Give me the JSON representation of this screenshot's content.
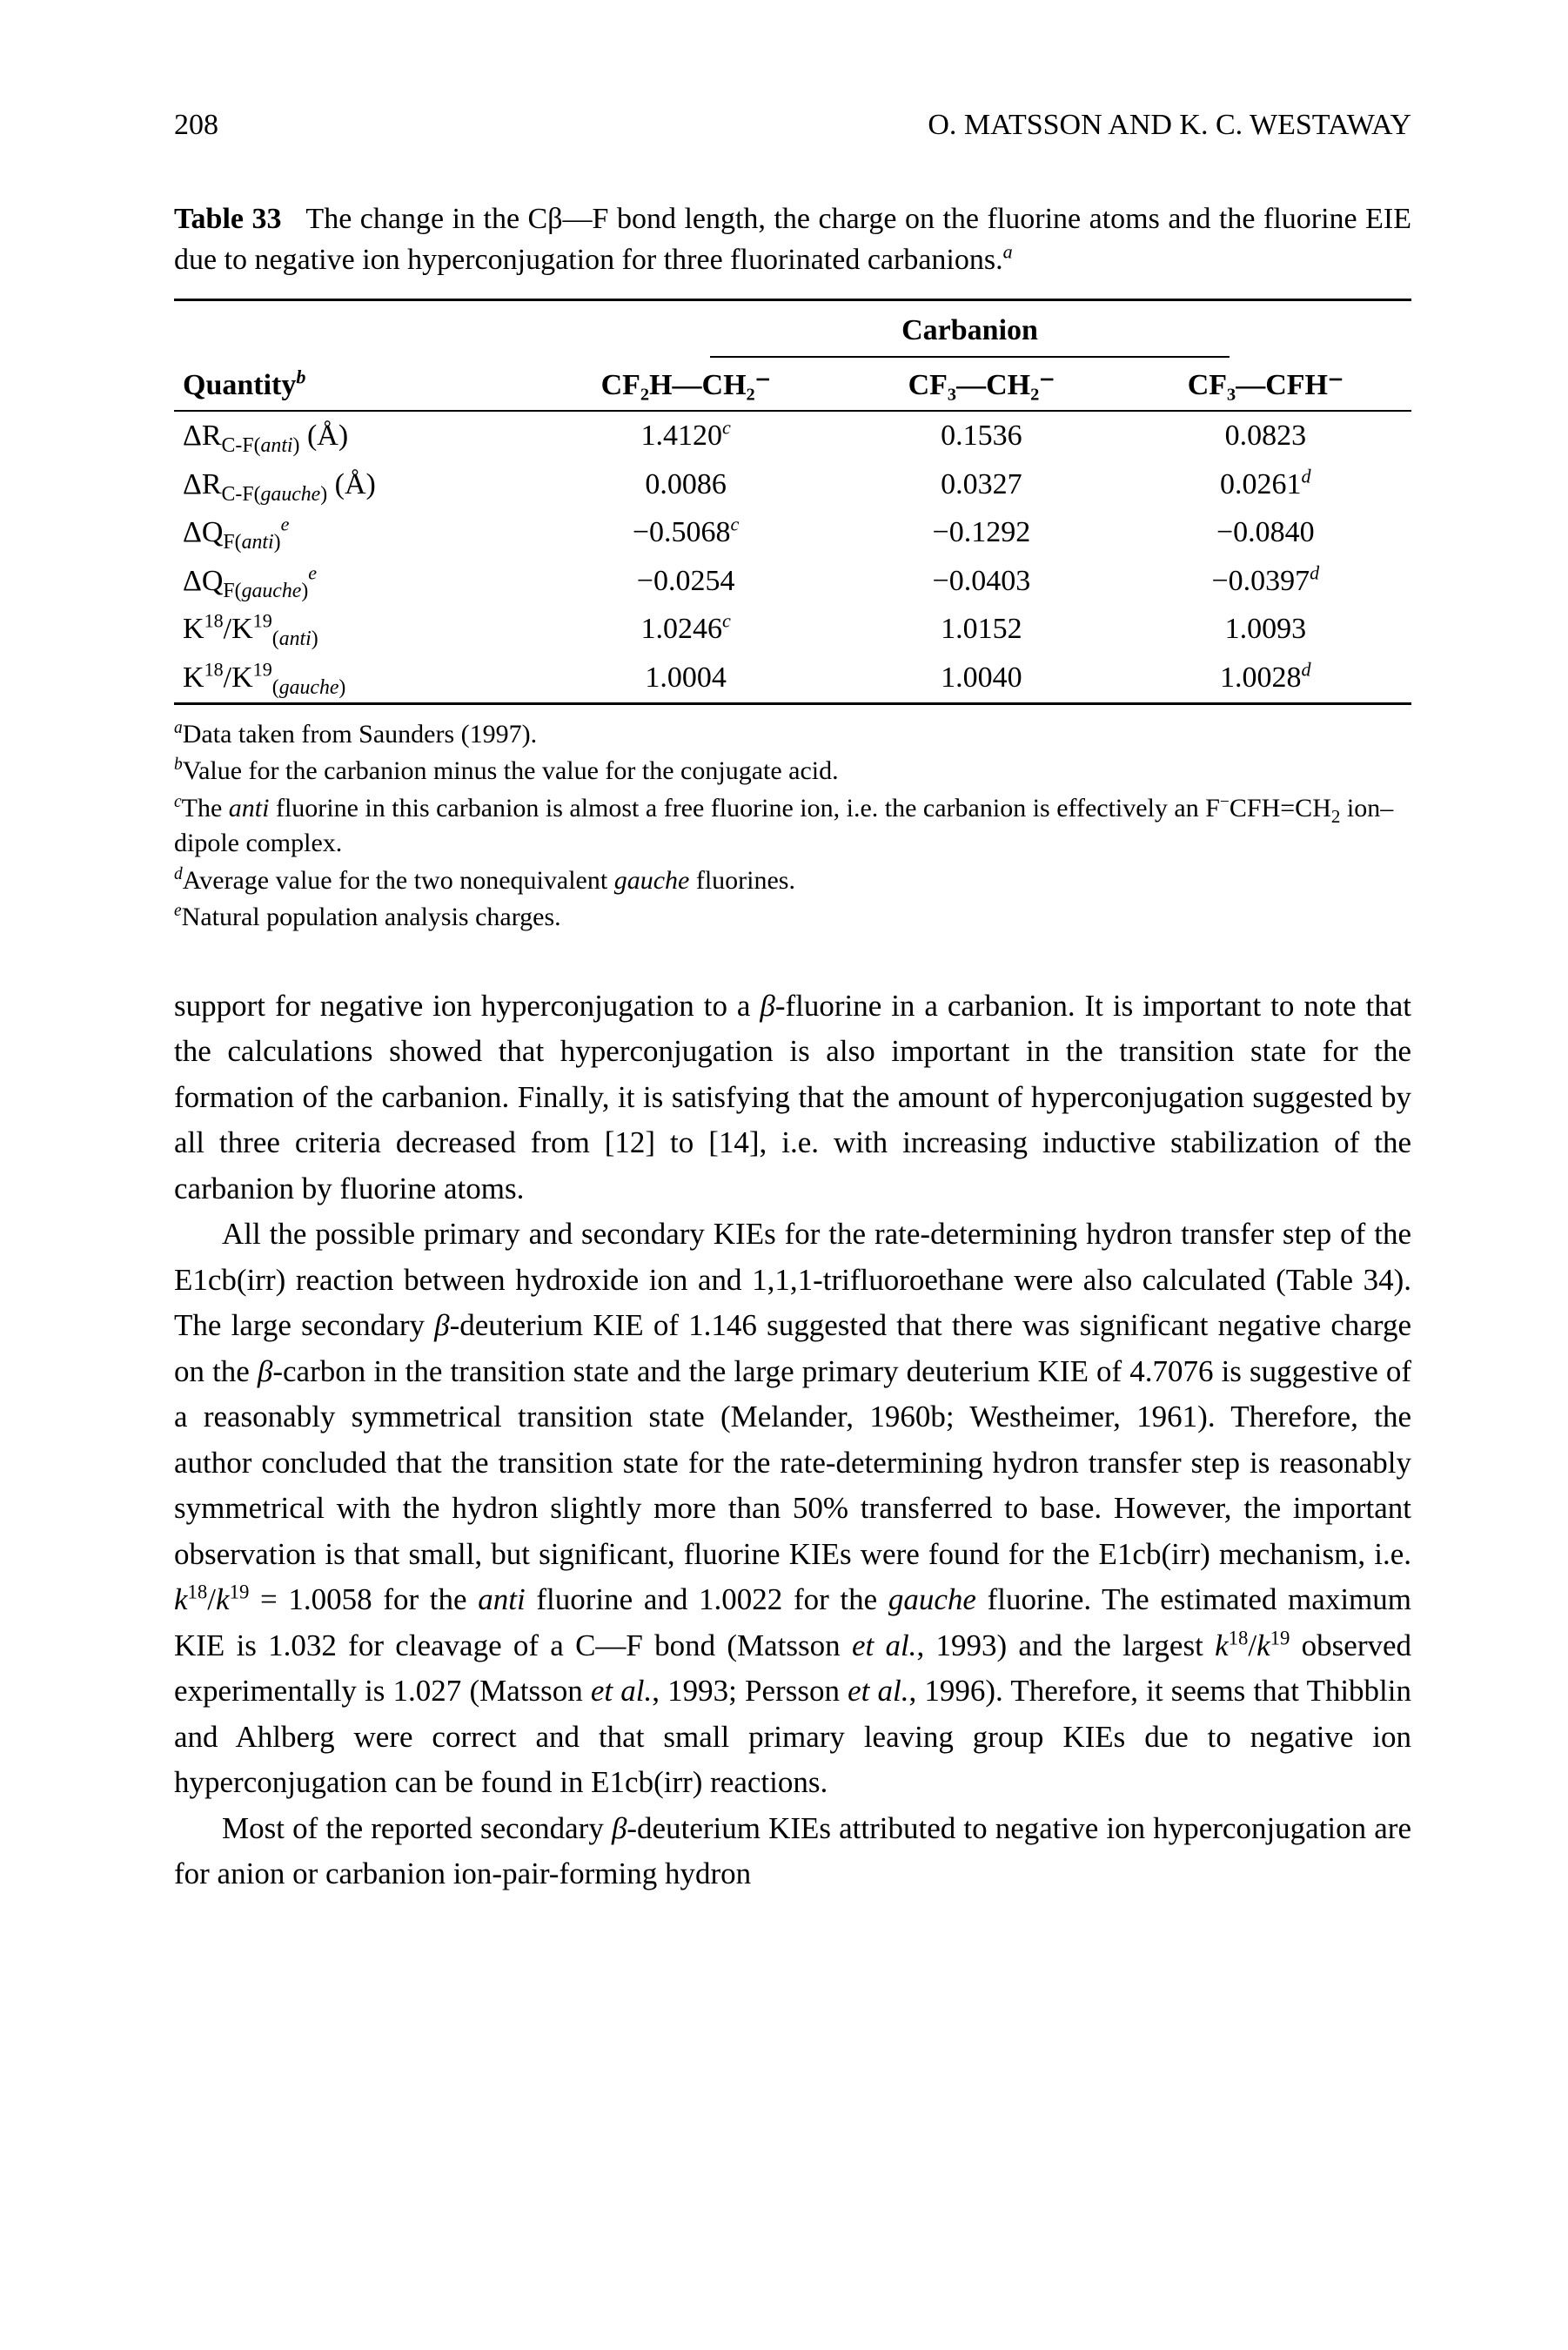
{
  "page": {
    "number": "208",
    "running_head_right": "O. MATSSON AND K. C. WESTAWAY"
  },
  "table33": {
    "label_bold": "Table 33",
    "caption_rest": "The change in the Cβ—F bond length, the charge on the fluorine atoms and the fluorine EIE due to negative ion hyperconjugation for three fluorinated carbanions.",
    "caption_super": "a",
    "spanner": "Carbanion",
    "col_headers": {
      "quantity": "Quantity",
      "quantity_super": "b",
      "c1": "CF₂H—CH₂⁻",
      "c2": "CF₃—CH₂⁻",
      "c3": "CF₃—CFH⁻"
    },
    "rows": [
      {
        "q_html": "ΔR<sub>C-F(<i>anti</i>)</sub> (Å)",
        "c1": "1.4120",
        "c1s": "c",
        "c2": "0.1536",
        "c2s": "",
        "c3": "0.0823",
        "c3s": ""
      },
      {
        "q_html": "ΔR<sub>C-F(<i>gauche</i>)</sub> (Å)",
        "c1": "0.0086",
        "c1s": "",
        "c2": "0.0327",
        "c2s": "",
        "c3": "0.0261",
        "c3s": "d"
      },
      {
        "q_html": "ΔQ<sub>F(<i>anti</i>)</sub><sup><i>e</i></sup>",
        "c1": "−0.5068",
        "c1s": "c",
        "c2": "−0.1292",
        "c2s": "",
        "c3": "−0.0840",
        "c3s": ""
      },
      {
        "q_html": "ΔQ<sub>F(<i>gauche</i>)</sub><sup><i>e</i></sup>",
        "c1": "−0.0254",
        "c1s": "",
        "c2": "−0.0403",
        "c2s": "",
        "c3": "−0.0397",
        "c3s": "d"
      },
      {
        "q_html": "K<sup>18</sup>/K<sup>19</sup><sub>(<i>anti</i>)</sub>",
        "c1": "1.0246",
        "c1s": "c",
        "c2": "1.0152",
        "c2s": "",
        "c3": "1.0093",
        "c3s": ""
      },
      {
        "q_html": "K<sup>18</sup>/K<sup>19</sup><sub>(<i>gauche</i>)</sub>",
        "c1": "1.0004",
        "c1s": "",
        "c2": "1.0040",
        "c2s": "",
        "c3": "1.0028",
        "c3s": "d"
      }
    ],
    "footnotes": {
      "a": "Data taken from Saunders (1997).",
      "b": "Value for the carbanion minus the value for the conjugate acid.",
      "c_html": "The <i>anti</i> fluorine in this carbanion is almost a free fluorine ion, i.e. the carbanion is effectively an F<sup>−</sup>CFH=CH<sub>2</sub> ion–dipole complex.",
      "d_html": "Average value for the two nonequivalent <i>gauche</i> fluorines.",
      "e": "Natural population analysis charges."
    }
  },
  "body": {
    "p1_html": "support for negative ion hyperconjugation to a <i>β</i>-fluorine in a carbanion. It is important to note that the calculations showed that hyperconjugation is also important in the transition state for the formation of the carbanion. Finally, it is satisfying that the amount of hyperconjugation suggested by all three criteria decreased from [12] to [14], i.e. with increasing inductive stabilization of the carbanion by fluorine atoms.",
    "p2_html": "All the possible primary and secondary KIEs for the rate-determining hydron transfer step of the E1cb(irr) reaction between hydroxide ion and 1,1,1-trifluoroethane were also calculated (Table 34). The large secondary <i>β</i>-deuterium KIE of 1.146 suggested that there was significant negative charge on the <i>β</i>-carbon in the transition state and the large primary deuterium KIE of 4.7076 is suggestive of a reasonably symmetrical transition state (Melander, 1960b; Westheimer, 1961). Therefore, the author concluded that the transition state for the rate-determining hydron transfer step is reasonably symmetrical with the hydron slightly more than 50% transferred to base. However, the important observation is that small, but significant, fluorine KIEs were found for the E1cb(irr) mechanism, i.e. <i>k</i><sup>18</sup>/<i>k</i><sup>19</sup> = 1.0058 for the <i>anti</i> fluorine and 1.0022 for the <i>gauche</i> fluorine. The estimated maximum KIE is 1.032 for cleavage of a C—F bond (Matsson <i>et al.</i>, 1993) and the largest <i>k</i><sup>18</sup>/<i>k</i><sup>19</sup> observed experimentally is 1.027 (Matsson <i>et al.</i>, 1993; Persson <i>et al.</i>, 1996). Therefore, it seems that Thibblin and Ahlberg were correct and that small primary leaving group KIEs due to negative ion hyperconjugation can be found in E1cb(irr) reactions.",
    "p3_html": "Most of the reported secondary <i>β</i>-deuterium KIEs attributed to negative ion hyperconjugation are for anion or carbanion ion-pair-forming hydron"
  }
}
